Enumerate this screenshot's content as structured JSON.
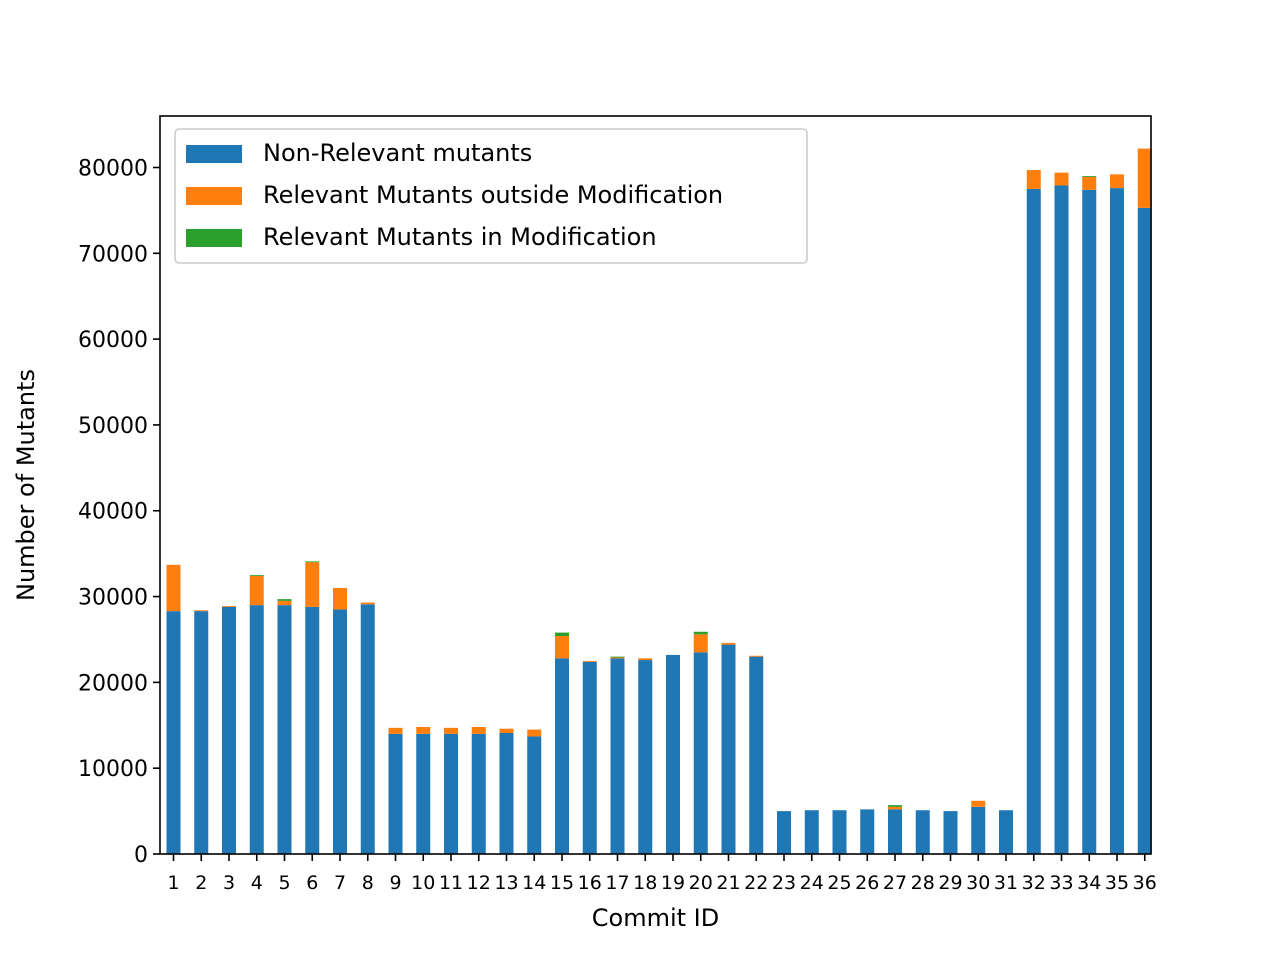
{
  "chart_data": {
    "type": "bar",
    "stacked": true,
    "title": "",
    "xlabel": "Commit ID",
    "ylabel": "Number of Mutants",
    "ylim": [
      0,
      86000
    ],
    "yticks": [
      0,
      10000,
      20000,
      30000,
      40000,
      50000,
      60000,
      70000,
      80000
    ],
    "grid": false,
    "legend_position": "top-left",
    "categories": [
      "1",
      "2",
      "3",
      "4",
      "5",
      "6",
      "7",
      "8",
      "9",
      "10",
      "11",
      "12",
      "13",
      "14",
      "15",
      "16",
      "17",
      "18",
      "19",
      "20",
      "21",
      "22",
      "23",
      "24",
      "25",
      "26",
      "27",
      "28",
      "29",
      "30",
      "31",
      "32",
      "33",
      "34",
      "35",
      "36"
    ],
    "series": [
      {
        "name": "Non-Relevant mutants",
        "color": "#1f77b4",
        "values": [
          28300,
          28300,
          28800,
          29000,
          29000,
          28800,
          28500,
          29100,
          14000,
          14000,
          14000,
          14000,
          14100,
          13700,
          22800,
          22400,
          22800,
          22600,
          23200,
          23500,
          24400,
          23000,
          5000,
          5100,
          5100,
          5200,
          5200,
          5100,
          5000,
          5500,
          5100,
          77500,
          77900,
          77400,
          77600,
          75300
        ]
      },
      {
        "name": "Relevant Mutants outside Modification",
        "color": "#ff7f0e",
        "values": [
          5400,
          100,
          100,
          3400,
          500,
          5200,
          2500,
          200,
          700,
          800,
          700,
          800,
          500,
          800,
          2600,
          100,
          100,
          200,
          0,
          2100,
          200,
          100,
          0,
          0,
          0,
          0,
          300,
          0,
          0,
          700,
          0,
          2200,
          1500,
          1500,
          1600,
          6900
        ]
      },
      {
        "name": "Relevant Mutants in Modification",
        "color": "#2ca02c",
        "values": [
          0,
          0,
          0,
          100,
          200,
          100,
          0,
          0,
          0,
          0,
          0,
          0,
          0,
          0,
          400,
          0,
          100,
          0,
          0,
          300,
          0,
          0,
          0,
          0,
          0,
          0,
          200,
          0,
          0,
          0,
          0,
          0,
          0,
          100,
          0,
          0
        ]
      }
    ]
  }
}
